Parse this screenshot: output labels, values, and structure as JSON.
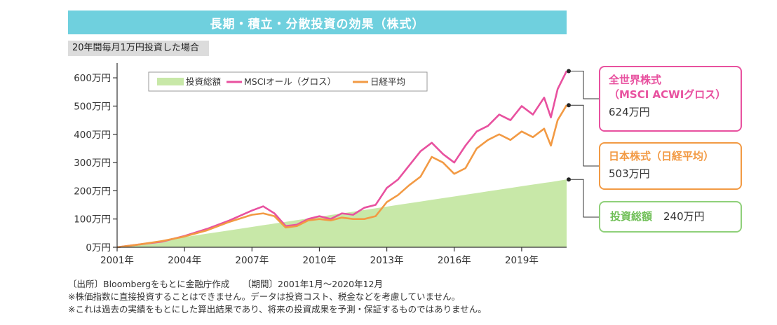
{
  "header": {
    "title": "長期・積立・分散投資の効果（株式）",
    "subtitle": "20年間毎月1万円投資した場合"
  },
  "chart_data": {
    "type": "line",
    "xlabel": "",
    "ylabel": "",
    "x_ticks": [
      "2001年",
      "2004年",
      "2007年",
      "2010年",
      "2013年",
      "2016年",
      "2019年"
    ],
    "y_ticks": [
      "0万円",
      "100万円",
      "200万円",
      "300万円",
      "400万円",
      "500万円",
      "600万円"
    ],
    "ylim": [
      0,
      640
    ],
    "xlim": [
      2001,
      2021
    ],
    "legend_position": "top-center",
    "x": [
      2001.0,
      2002.0,
      2003.0,
      2004.0,
      2005.0,
      2006.0,
      2007.0,
      2007.5,
      2008.0,
      2008.5,
      2009.0,
      2009.5,
      2010.0,
      2010.5,
      2011.0,
      2011.5,
      2012.0,
      2012.5,
      2013.0,
      2013.5,
      2014.0,
      2014.5,
      2015.0,
      2015.5,
      2016.0,
      2016.5,
      2017.0,
      2017.5,
      2018.0,
      2018.5,
      2019.0,
      2019.5,
      2020.0,
      2020.3,
      2020.6,
      2021.0
    ],
    "series": [
      {
        "name": "投資総額",
        "type": "area",
        "color": "#c8e8a8",
        "values": [
          0,
          12,
          24,
          36,
          48,
          60,
          72,
          78,
          84,
          90,
          96,
          102,
          108,
          114,
          120,
          126,
          132,
          138,
          144,
          150,
          156,
          162,
          168,
          174,
          180,
          186,
          192,
          198,
          204,
          210,
          216,
          222,
          228,
          231,
          235,
          240
        ]
      },
      {
        "name": "MSCIオール（グロス）",
        "type": "line",
        "color": "#e8519f",
        "values": [
          0,
          10,
          20,
          40,
          65,
          95,
          130,
          145,
          120,
          75,
          80,
          100,
          110,
          100,
          120,
          115,
          140,
          150,
          210,
          240,
          290,
          340,
          370,
          330,
          300,
          360,
          410,
          430,
          470,
          450,
          500,
          470,
          530,
          460,
          560,
          624
        ]
      },
      {
        "name": "日経平均",
        "type": "line",
        "color": "#f29a44",
        "values": [
          0,
          10,
          22,
          38,
          60,
          90,
          115,
          120,
          110,
          70,
          75,
          95,
          100,
          95,
          105,
          100,
          100,
          110,
          160,
          185,
          220,
          250,
          320,
          300,
          260,
          280,
          350,
          380,
          400,
          380,
          410,
          390,
          420,
          360,
          450,
          503
        ]
      }
    ]
  },
  "callouts": [
    {
      "name_line1": "全世界株式",
      "name_line2": "（MSCI ACWIグロス）",
      "amount": "624万円"
    },
    {
      "name_line1": "日本株式（日経平均）",
      "amount": "503万円"
    },
    {
      "name_line1": "投資総額",
      "amount": "240万円"
    }
  ],
  "notes": [
    "〔出所〕Bloombergをもとに金融庁作成　　〔期間〕2001年1月〜2020年12月",
    "※株価指数に直接投資することはできません。データは投資コスト、税金などを考慮していません。",
    "※これは過去の実績をもとにした算出結果であり、将来の投資成果を予測・保証するものではありません。"
  ]
}
